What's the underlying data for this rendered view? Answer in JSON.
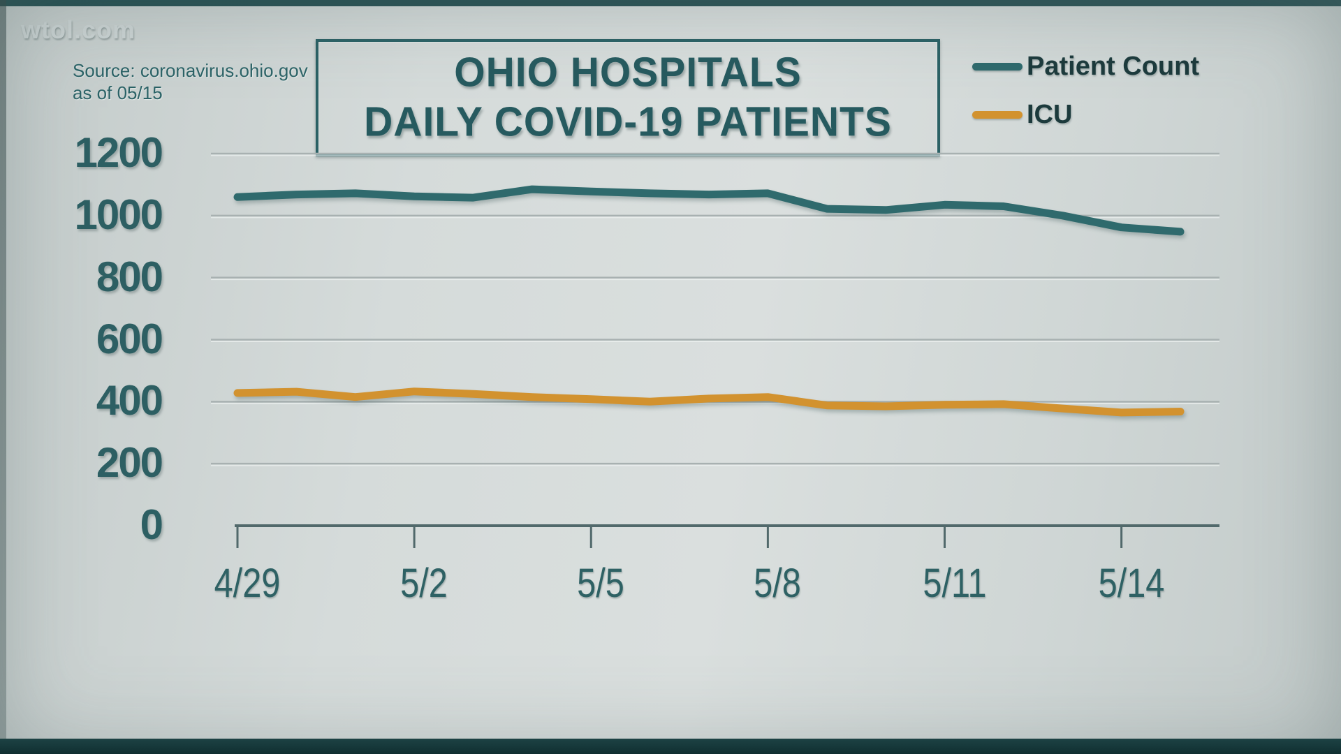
{
  "page": {
    "brand": "wtol.com",
    "source_line1": "Source: coronavirus.ohio.gov",
    "source_line2": "as of 05/15",
    "title_line1": "OHIO HOSPITALS",
    "title_line2": "DAILY COVID-19 PATIENTS"
  },
  "colors": {
    "patient_count": "#2f6a6d",
    "icu": "#d2922f",
    "title_teal": "#265a5f",
    "axis_text": "#2d5f63",
    "gridline": "#a8b1b1",
    "axis_line": "#51696b"
  },
  "chart_data": {
    "type": "line",
    "title": "OHIO HOSPITALS DAILY COVID-19 PATIENTS",
    "source": "Source: coronavirus.ohio.gov as of 05/15",
    "x": [
      "4/29",
      "4/30",
      "5/1",
      "5/2",
      "5/3",
      "5/4",
      "5/5",
      "5/6",
      "5/7",
      "5/8",
      "5/9",
      "5/10",
      "5/11",
      "5/12",
      "5/13",
      "5/14",
      "5/15"
    ],
    "x_tick_labels": [
      "4/29",
      "5/2",
      "5/5",
      "5/8",
      "5/11",
      "5/14"
    ],
    "x_tick_indices": [
      0,
      3,
      6,
      9,
      12,
      15
    ],
    "y_ticks": [
      0,
      200,
      400,
      600,
      800,
      1000,
      1200
    ],
    "ylim": [
      0,
      1200
    ],
    "grid": true,
    "legend_position": "top-right",
    "series": [
      {
        "name": "Patient Count",
        "color": "#2f6a6d",
        "values": [
          1060,
          1068,
          1072,
          1062,
          1058,
          1085,
          1078,
          1072,
          1068,
          1072,
          1022,
          1018,
          1035,
          1030,
          1000,
          962,
          948
        ]
      },
      {
        "name": "ICU",
        "color": "#d2922f",
        "values": [
          428,
          432,
          415,
          433,
          425,
          415,
          408,
          400,
          410,
          415,
          388,
          385,
          390,
          392,
          378,
          365,
          368
        ]
      }
    ]
  }
}
